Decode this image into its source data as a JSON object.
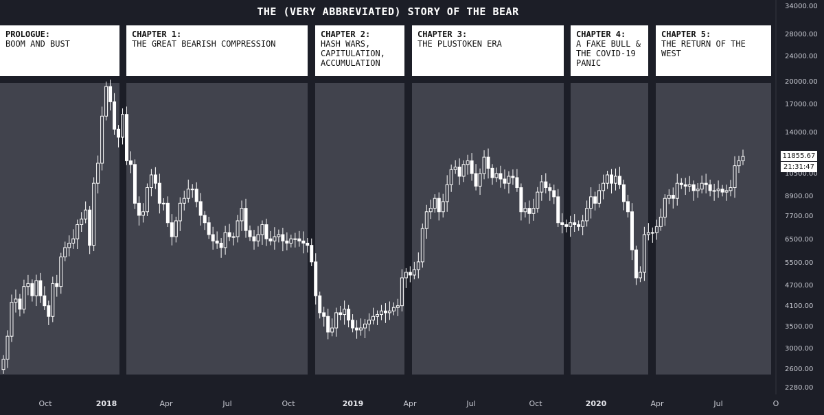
{
  "title": "THE (VERY ABBREVIATED) STORY OF THE BEAR",
  "chapters": [
    {
      "title": "PROLOGUE:",
      "subtitle": "BOOM AND BUST"
    },
    {
      "title": "CHAPTER 1:",
      "subtitle": "THE GREAT BEARISH COMPRESSION"
    },
    {
      "title": "CHAPTER 2:",
      "subtitle": "HASH WARS,\nCAPITULATION,\nACCUMULATION"
    },
    {
      "title": "CHAPTER 3:",
      "subtitle": "THE PLUSTOKEN ERA"
    },
    {
      "title": "CHAPTER 4:",
      "subtitle": "A FAKE BULL &\nTHE COVID-19\nPANIC"
    },
    {
      "title": "CHAPTER 5:",
      "subtitle": "THE RETURN OF THE\nWEST"
    }
  ],
  "price_label": "11855.67",
  "countdown_label": "21:31:47",
  "colors": {
    "background": "#1c1e27",
    "panel": "#41434d",
    "candle": "#ffffff",
    "box": "#ffffff"
  },
  "chart_data": {
    "type": "candlestick",
    "interval": "weekly",
    "y_scale": "log",
    "y_ticks": [
      "34000.00",
      "28000.00",
      "24000.00",
      "20000.00",
      "17000.00",
      "14000.00",
      "10500.00",
      "8900.00",
      "7700.00",
      "6500.00",
      "5500.00",
      "4700.00",
      "4100.00",
      "3500.00",
      "3000.00",
      "2600.00",
      "2280.00"
    ],
    "x_ticks": [
      {
        "label": "Oct",
        "bold": false
      },
      {
        "label": "2018",
        "bold": true
      },
      {
        "label": "Apr",
        "bold": false
      },
      {
        "label": "Jul",
        "bold": false
      },
      {
        "label": "Oct",
        "bold": false
      },
      {
        "label": "2019",
        "bold": true
      },
      {
        "label": "Apr",
        "bold": false
      },
      {
        "label": "Jul",
        "bold": false
      },
      {
        "label": "Oct",
        "bold": false
      },
      {
        "label": "2020",
        "bold": true
      },
      {
        "label": "Apr",
        "bold": false
      },
      {
        "label": "Jul",
        "bold": false
      },
      {
        "label": "O",
        "bold": false
      }
    ],
    "close": [
      2800,
      3300,
      4200,
      4300,
      4000,
      4700,
      4800,
      4400,
      4900,
      4400,
      4100,
      3800,
      4800,
      4700,
      5800,
      6200,
      6400,
      6600,
      7300,
      7600,
      8100,
      6300,
      9800,
      11300,
      15800,
      19500,
      17500,
      14400,
      13600,
      16000,
      11500,
      11200,
      8500,
      7800,
      8000,
      9500,
      10400,
      9800,
      8500,
      8500,
      7400,
      6700,
      7500,
      8500,
      8800,
      9400,
      9400,
      8600,
      7800,
      7400,
      6800,
      6500,
      6400,
      6200,
      6900,
      6700,
      6700,
      7500,
      8200,
      7000,
      6700,
      6500,
      6800,
      7300,
      6600,
      6500,
      6700,
      6800,
      6500,
      6400,
      6600,
      6600,
      6500,
      6400,
      6300,
      5600,
      4400,
      3900,
      3800,
      3400,
      3500,
      3900,
      3850,
      4000,
      3700,
      3500,
      3450,
      3500,
      3600,
      3700,
      3800,
      3850,
      3950,
      3900,
      3950,
      4050,
      4100,
      5000,
      5200,
      5100,
      5300,
      5600,
      7100,
      8000,
      8200,
      8800,
      8000,
      8600,
      9700,
      10800,
      11000,
      10300,
      11200,
      11500,
      10500,
      9600,
      10500,
      11800,
      10900,
      10200,
      10500,
      10100,
      9800,
      10300,
      10200,
      9500,
      8000,
      8200,
      7900,
      8200,
      9200,
      9900,
      9500,
      9300,
      8900,
      7400,
      7300,
      7200,
      7400,
      7300,
      7200,
      7500,
      8200,
      8900,
      8500,
      9300,
      9800,
      10400,
      9800,
      10300,
      9700,
      8600,
      8000,
      6100,
      5000,
      5200,
      6800,
      6900,
      6900,
      7200,
      7700,
      8800,
      9000,
      8800,
      9800,
      9700,
      9600,
      9700,
      9300,
      9400,
      9800,
      9700,
      9300,
      9300,
      9400,
      9200,
      9300,
      9500,
      11100,
      11500,
      11855.67
    ]
  }
}
